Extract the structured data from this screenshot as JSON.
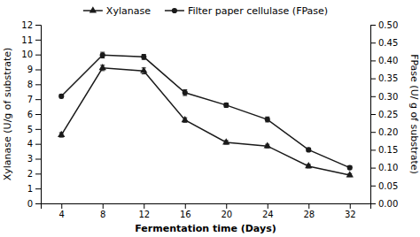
{
  "chart_data": {
    "type": "line",
    "xlabel": "Fermentation time (Days)",
    "ylabel": "Xylanase (U/g of substrate)",
    "y2label": "FPase (U/ g of substrate)",
    "x": [
      4,
      8,
      12,
      16,
      20,
      24,
      28,
      32
    ],
    "series": [
      {
        "name": "Xylanase",
        "color": "#1a1a1a",
        "marker": "triangle",
        "values": [
          4.6,
          9.1,
          8.9,
          5.6,
          4.1,
          3.85,
          2.5,
          1.9
        ],
        "errors": [
          0.15,
          0.18,
          0.2,
          0.15,
          0.12,
          0.12,
          0.12,
          0.1
        ]
      },
      {
        "name": "Filter paper cellulase (FPase)",
        "color": "#1a1a1a",
        "marker": "circle",
        "axis": "y2",
        "values": [
          0.3,
          0.415,
          0.41,
          0.31,
          0.275,
          0.235,
          0.15,
          0.1
        ],
        "errors": [
          0.005,
          0.008,
          0.007,
          0.008,
          0.006,
          0.007,
          0.005,
          0.005
        ]
      }
    ],
    "xlim": [
      2,
      34
    ],
    "xticks": [
      4,
      8,
      12,
      16,
      20,
      24,
      28,
      32
    ],
    "ylim": [
      0,
      12
    ],
    "yticks": [
      0,
      1,
      2,
      3,
      4,
      5,
      6,
      7,
      8,
      9,
      10,
      11,
      12
    ],
    "y2lim": [
      0,
      0.5
    ],
    "y2ticks": [
      {
        "value": 0,
        "label": "0.00"
      },
      {
        "value": 0.05,
        "label": "0.05"
      },
      {
        "value": 0.1,
        "label": "0.10"
      },
      {
        "value": 0.15,
        "label": "0.15"
      },
      {
        "value": 0.2,
        "label": "0.20"
      },
      {
        "value": 0.25,
        "label": "0.25"
      },
      {
        "value": 0.3,
        "label": "0.30"
      },
      {
        "value": 0.35,
        "label": "0.35"
      },
      {
        "value": 0.4,
        "label": "0.40"
      },
      {
        "value": 0.45,
        "label": "0.45"
      },
      {
        "value": 0.5,
        "label": "0.50"
      }
    ],
    "legend": "top"
  }
}
